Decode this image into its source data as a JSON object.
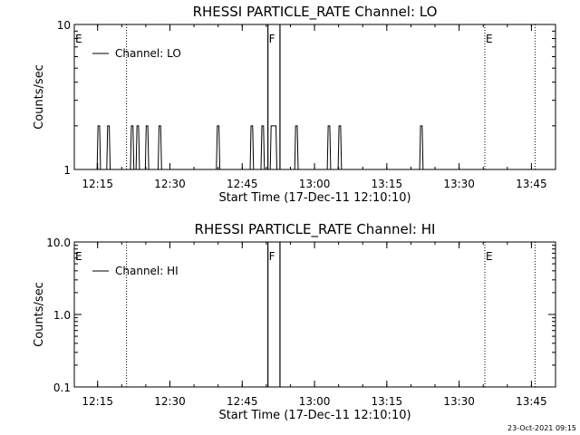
{
  "timestamp": "23-Oct-2021 09:15",
  "chart_data": [
    {
      "type": "line",
      "title": "RHESSI PARTICLE_RATE Channel: LO",
      "xlabel": "Start Time (17-Dec-11 12:10:10)",
      "ylabel": "Counts/sec",
      "y_scale": "log",
      "ylim": [
        1,
        10
      ],
      "ytick_labels": [
        "1",
        "10"
      ],
      "xlim": [
        "12:10:10",
        "13:50:00"
      ],
      "xtick_labels": [
        "12:15",
        "12:30",
        "12:45",
        "13:00",
        "13:15",
        "13:30",
        "13:45"
      ],
      "grid": false,
      "legend_position": "top-left",
      "legend": [
        "Channel: LO"
      ],
      "series": [
        {
          "name": "Channel: LO",
          "color": "#000000",
          "spikes": [
            {
              "start": "12:15:05",
              "end": "12:15:25",
              "value": 2
            },
            {
              "start": "12:17:05",
              "end": "12:17:25",
              "value": 2
            },
            {
              "start": "12:22:00",
              "end": "12:22:20",
              "value": 2
            },
            {
              "start": "12:23:10",
              "end": "12:23:30",
              "value": 2
            },
            {
              "start": "12:25:05",
              "end": "12:25:25",
              "value": 2
            },
            {
              "start": "12:27:45",
              "end": "12:28:05",
              "value": 2
            },
            {
              "start": "12:39:50",
              "end": "12:40:10",
              "value": 2
            },
            {
              "start": "12:46:50",
              "end": "12:47:10",
              "value": 2
            },
            {
              "start": "12:49:05",
              "end": "12:49:25",
              "value": 2
            },
            {
              "start": "12:51:00",
              "end": "12:52:00",
              "value": 2
            },
            {
              "start": "12:56:05",
              "end": "12:56:25",
              "value": 2
            },
            {
              "start": "13:02:50",
              "end": "13:03:10",
              "value": 2
            },
            {
              "start": "13:05:05",
              "end": "13:05:25",
              "value": 2
            },
            {
              "start": "13:22:00",
              "end": "13:22:20",
              "value": 2
            }
          ]
        }
      ],
      "annotations": [
        {
          "text": "E",
          "time": "12:10:10",
          "line": "none"
        },
        {
          "text": "F",
          "time": "12:50:20",
          "line": "solid"
        },
        {
          "text": "",
          "time": "12:52:50",
          "line": "solid"
        },
        {
          "text": "E",
          "time": "13:35:20",
          "line": "dotted"
        },
        {
          "text": "",
          "time": "12:21:00",
          "line": "dotted"
        },
        {
          "text": "",
          "time": "13:45:45",
          "line": "dotted"
        }
      ]
    },
    {
      "type": "line",
      "title": "RHESSI PARTICLE_RATE Channel: HI",
      "xlabel": "Start Time (17-Dec-11 12:10:10)",
      "ylabel": "Counts/sec",
      "y_scale": "log",
      "ylim": [
        0.1,
        10
      ],
      "ytick_labels": [
        "0.1",
        "1.0",
        "10.0"
      ],
      "xlim": [
        "12:10:10",
        "13:50:00"
      ],
      "xtick_labels": [
        "12:15",
        "12:30",
        "12:45",
        "13:00",
        "13:15",
        "13:30",
        "13:45"
      ],
      "grid": false,
      "legend_position": "top-left",
      "legend": [
        "Channel: HI"
      ],
      "series": [
        {
          "name": "Channel: HI",
          "color": "#000000",
          "spikes": []
        }
      ],
      "annotations": [
        {
          "text": "E",
          "time": "12:10:10",
          "line": "none"
        },
        {
          "text": "F",
          "time": "12:50:20",
          "line": "solid"
        },
        {
          "text": "",
          "time": "12:52:50",
          "line": "solid"
        },
        {
          "text": "E",
          "time": "13:35:20",
          "line": "dotted"
        },
        {
          "text": "",
          "time": "12:21:00",
          "line": "dotted"
        },
        {
          "text": "",
          "time": "13:45:45",
          "line": "dotted"
        }
      ]
    }
  ]
}
